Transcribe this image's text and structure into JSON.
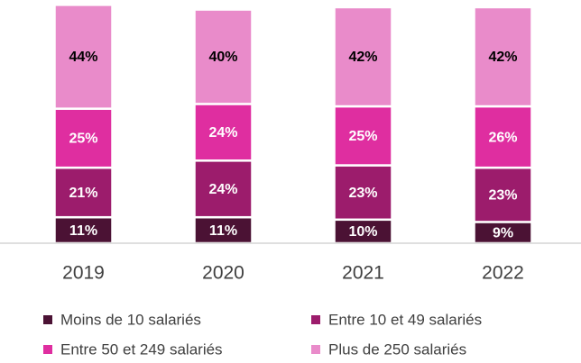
{
  "chart_data": {
    "type": "stacked_bar",
    "categories": [
      "2019",
      "2020",
      "2021",
      "2022"
    ],
    "series": [
      {
        "name": "Moins de 10 salariés",
        "color": "#4b1234",
        "label_color": "#ffffff",
        "values": [
          11,
          11,
          10,
          9
        ],
        "value_labels": [
          "11%",
          "11%",
          "10%",
          "9%"
        ]
      },
      {
        "name": "Entre 10 et 49 salariés",
        "color": "#9c1c6c",
        "label_color": "#ffffff",
        "values": [
          21,
          24,
          23,
          23
        ],
        "value_labels": [
          "21%",
          "24%",
          "23%",
          "23%"
        ]
      },
      {
        "name": "Entre 50 et 249 salariés",
        "color": "#df2ea0",
        "label_color": "#ffffff",
        "values": [
          25,
          24,
          25,
          26
        ],
        "value_labels": [
          "25%",
          "24%",
          "25%",
          "26%"
        ]
      },
      {
        "name": "Plus de 250 salariés",
        "color": "#e98bca",
        "label_color": "#000000",
        "values": [
          44,
          40,
          42,
          42
        ],
        "value_labels": [
          "44%",
          "40%",
          "42%",
          "42%"
        ]
      }
    ],
    "ylim": [
      0,
      100
    ]
  }
}
